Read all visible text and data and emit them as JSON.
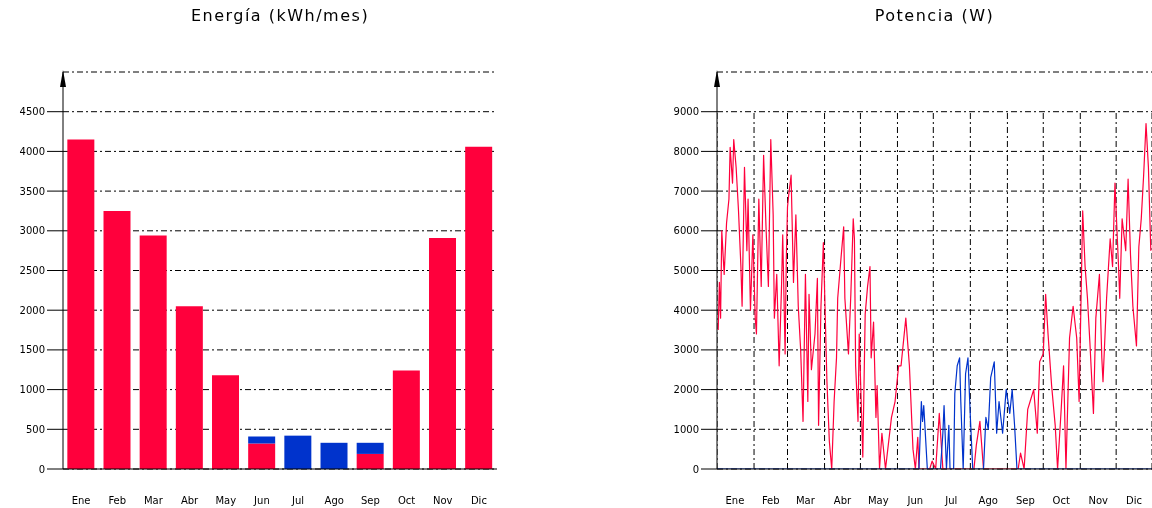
{
  "chart_data": [
    {
      "type": "bar",
      "title": "Energía (kWh/mes)",
      "categories": [
        "Ene",
        "Feb",
        "Mar",
        "Abr",
        "May",
        "Jun",
        "Jul",
        "Ago",
        "Sep",
        "Oct",
        "Nov",
        "Dic"
      ],
      "stacked": true,
      "series": [
        {
          "color": "#ff003c",
          "values": [
            4150,
            3250,
            2940,
            2050,
            1180,
            320,
            0,
            0,
            190,
            1240,
            2910,
            4060
          ]
        },
        {
          "color": "#0033cc",
          "values": [
            0,
            0,
            0,
            0,
            0,
            90,
            420,
            330,
            140,
            0,
            0,
            0
          ]
        }
      ],
      "ylim": [
        0,
        5000
      ],
      "yticks": [
        0,
        500,
        1000,
        1500,
        2000,
        2500,
        3000,
        3500,
        4000,
        4500
      ],
      "grid": "y"
    },
    {
      "type": "line",
      "title": "Potencia (W)",
      "xlim": [
        "--01-01",
        "--12-31"
      ],
      "xticks": [
        {
          "value": "--01-01",
          "label": null
        },
        {
          "value": "--01-16",
          "label": "Ene"
        },
        {
          "value": "--02-01",
          "label": null
        },
        {
          "value": "--02-15",
          "label": "Feb"
        },
        {
          "value": "--03-01",
          "label": null
        },
        {
          "value": "--03-16",
          "label": "Mar"
        },
        {
          "value": "--04-01",
          "label": null
        },
        {
          "value": "--04-16",
          "label": "Abr"
        },
        {
          "value": "--05-01",
          "label": null
        },
        {
          "value": "--05-16",
          "label": "May"
        },
        {
          "value": "--06-01",
          "label": null
        },
        {
          "value": "--06-16",
          "label": "Jun"
        },
        {
          "value": "--07-01",
          "label": null
        },
        {
          "value": "--07-16",
          "label": "Jul"
        },
        {
          "value": "--08-01",
          "label": null
        },
        {
          "value": "--08-16",
          "label": "Ago"
        },
        {
          "value": "--09-01",
          "label": null
        },
        {
          "value": "--09-16",
          "label": "Sep"
        },
        {
          "value": "--10-01",
          "label": null
        },
        {
          "value": "--10-16",
          "label": "Oct"
        },
        {
          "value": "--11-01",
          "label": null
        },
        {
          "value": "--11-16",
          "label": "Nov"
        },
        {
          "value": "--12-01",
          "label": null
        },
        {
          "value": "--12-16",
          "label": "Dic"
        },
        {
          "value": "--12-31",
          "label": null
        }
      ],
      "ylim": [
        0,
        10000
      ],
      "yticks": [
        0,
        1000,
        2000,
        3000,
        4000,
        5000,
        6000,
        7000,
        8000,
        9000
      ],
      "grid": true,
      "series": [
        {
          "color": "#ff003c",
          "x": [
            "--01-02",
            "--01-03",
            "--01-04",
            "--01-05",
            "--01-07",
            "--01-09",
            "--01-11",
            "--01-12",
            "--01-14",
            "--01-15",
            "--01-17",
            "--01-19",
            "--01-21",
            "--01-22",
            "--01-24",
            "--01-26",
            "--01-27",
            "--01-29",
            "--01-31",
            "--02-02",
            "--02-03",
            "--02-05",
            "--02-07",
            "--02-09",
            "--02-11",
            "--02-13",
            "--02-15",
            "--02-17",
            "--02-18",
            "--02-20",
            "--02-22",
            "--02-24",
            "--02-25",
            "--02-27",
            "--02-28",
            "--03-01",
            "--03-02",
            "--03-04",
            "--03-06",
            "--03-08",
            "--03-10",
            "--03-12",
            "--03-14",
            "--03-16",
            "--03-18",
            "--03-19",
            "--03-21",
            "--03-24",
            "--03-26",
            "--03-27",
            "--03-29",
            "--03-31",
            "--04-03",
            "--04-05",
            "--04-07",
            "--04-09",
            "--04-11",
            "--04-12",
            "--04-15",
            "--04-17",
            "--04-18",
            "--04-21",
            "--04-23",
            "--04-25",
            "--04-26",
            "--04-27",
            "--04-29",
            "--04-30",
            "--05-03",
            "--05-05",
            "--05-07",
            "--05-09",
            "--05-10",
            "--05-12",
            "--05-14",
            "--05-15",
            "--05-17",
            "--05-19",
            "--05-22",
            "--05-27",
            "--05-30",
            "--06-02",
            "--06-04",
            "--06-08",
            "--06-11",
            "--06-14",
            "--06-16",
            "--06-18",
            "--06-19",
            "--06-28",
            "--06-30",
            "--07-03",
            "--07-06",
            "--07-09",
            "--08-04",
            "--08-06",
            "--08-09",
            "--08-12",
            "--09-10",
            "--09-12",
            "--09-15",
            "--09-18",
            "--09-20",
            "--09-23",
            "--09-26",
            "--09-28",
            "--10-01",
            "--10-03",
            "--10-05",
            "--10-08",
            "--10-11",
            "--10-13",
            "--10-16",
            "--10-18",
            "--10-20",
            "--10-23",
            "--10-26",
            "--10-29",
            "--10-31",
            "--11-03",
            "--11-05",
            "--11-07",
            "--11-09",
            "--11-12",
            "--11-14",
            "--11-17",
            "--11-19",
            "--11-20",
            "--11-23",
            "--11-26",
            "--11-28",
            "--11-30",
            "--12-03",
            "--12-04",
            "--12-06",
            "--12-09",
            "--12-11",
            "--12-13",
            "--12-15",
            "--12-18",
            "--12-20",
            "--12-22",
            "--12-24",
            "--12-26",
            "--12-28",
            "--12-30"
          ],
          "values": [
            3500,
            4700,
            3800,
            6000,
            4900,
            6200,
            6800,
            8100,
            7200,
            8300,
            7600,
            6500,
            5100,
            4100,
            7600,
            5500,
            6800,
            4000,
            5900,
            3800,
            3400,
            6800,
            4600,
            7900,
            6100,
            4600,
            8300,
            6400,
            3800,
            4900,
            2600,
            4600,
            5900,
            2900,
            5300,
            6600,
            6900,
            7400,
            4700,
            6400,
            4100,
            3000,
            1200,
            4900,
            1700,
            4400,
            2500,
            3400,
            4800,
            1100,
            4100,
            5700,
            2200,
            700,
            0,
            1700,
            2800,
            4300,
            5400,
            6100,
            4300,
            2900,
            4400,
            6300,
            5800,
            2600,
            1200,
            3400,
            300,
            3900,
            4600,
            5100,
            2800,
            3700,
            1300,
            2100,
            0,
            900,
            0,
            1300,
            1700,
            2600,
            2600,
            3800,
            2600,
            500,
            0,
            800,
            0,
            0,
            200,
            0,
            1400,
            0,
            0,
            600,
            1200,
            0,
            0,
            400,
            0,
            1500,
            1700,
            2000,
            900,
            2700,
            2900,
            4400,
            3400,
            2100,
            1100,
            0,
            1500,
            2600,
            0,
            3300,
            4100,
            3300,
            1700,
            6500,
            5100,
            4300,
            3200,
            1400,
            3800,
            4900,
            2800,
            2200,
            4300,
            5800,
            5100,
            7200,
            5100,
            4300,
            6300,
            5500,
            7300,
            5400,
            4100,
            3100,
            5600,
            6300,
            7400,
            8700,
            7600,
            5500
          ]
        },
        {
          "color": "#0033cc",
          "x": [
            "--01-01",
            "--06-19",
            "--06-21",
            "--06-22",
            "--06-23",
            "--06-26",
            "--07-07",
            "--07-09",
            "--07-10",
            "--07-12",
            "--07-14",
            "--07-15",
            "--07-18",
            "--07-19",
            "--07-21",
            "--07-23",
            "--07-24",
            "--07-26",
            "--07-28",
            "--07-30",
            "--08-01",
            "--08-03",
            "--08-12",
            "--08-14",
            "--08-16",
            "--08-18",
            "--08-21",
            "--08-23",
            "--08-25",
            "--08-28",
            "--08-31",
            "--09-03",
            "--09-05",
            "--09-07",
            "--09-09",
            "--12-31"
          ],
          "values": [
            0,
            0,
            1700,
            1200,
            1600,
            0,
            0,
            900,
            1600,
            0,
            1100,
            0,
            0,
            1900,
            2600,
            2800,
            1700,
            0,
            2400,
            2800,
            1300,
            0,
            0,
            1300,
            1000,
            2300,
            2700,
            900,
            1700,
            900,
            2000,
            1400,
            2000,
            1100,
            0,
            0
          ]
        }
      ]
    }
  ]
}
